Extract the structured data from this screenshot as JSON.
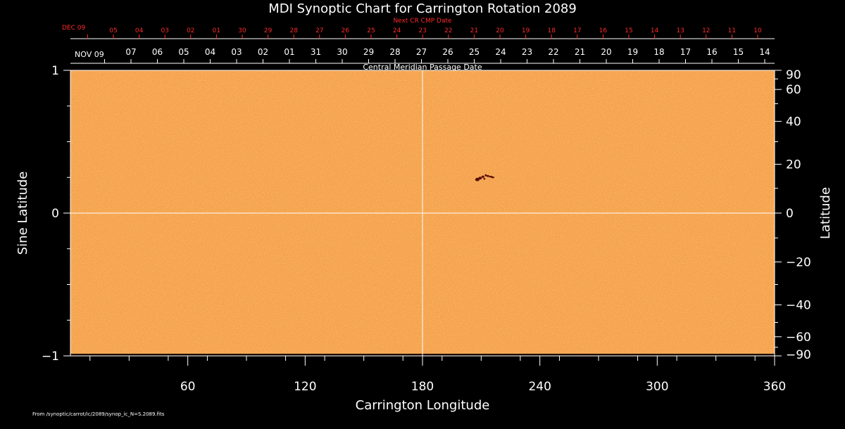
{
  "chart_data": {
    "type": "heatmap",
    "title": "MDI Synoptic Chart for Carrington Rotation 2089",
    "xlabel": "Carrington Longitude",
    "ylabel_left": "Sine Latitude",
    "ylabel_right": "Latitude",
    "xlim": [
      0,
      360
    ],
    "ylim": [
      -1,
      1
    ],
    "x_ticks": [
      60,
      120,
      180,
      240,
      300,
      360
    ],
    "y_left_ticks": [
      {
        "value": 1,
        "label": "1"
      },
      {
        "value": 0,
        "label": "0"
      },
      {
        "value": -1,
        "label": "−1"
      }
    ],
    "y_right_ticks": [
      {
        "deg": 90,
        "label": "90"
      },
      {
        "deg": 60,
        "label": "60"
      },
      {
        "deg": 40,
        "label": "40"
      },
      {
        "deg": 20,
        "label": "20"
      },
      {
        "deg": 0,
        "label": "0"
      },
      {
        "deg": -20,
        "label": "−20"
      },
      {
        "deg": -40,
        "label": "−40"
      },
      {
        "deg": -60,
        "label": "−60"
      },
      {
        "deg": -90,
        "label": "−90"
      }
    ],
    "top_axis": {
      "label": "Central Meridian Passage Date",
      "start_label": "NOV 09",
      "dates": [
        "07",
        "06",
        "05",
        "04",
        "03",
        "02",
        "01",
        "31",
        "30",
        "29",
        "28",
        "27",
        "26",
        "25",
        "24",
        "23",
        "22",
        "21",
        "20",
        "19",
        "18",
        "17",
        "16",
        "15",
        "14"
      ]
    },
    "next_axis": {
      "label": "Next CR CMP Date",
      "start_label": "DEC 09",
      "dates": [
        "05",
        "04",
        "03",
        "02",
        "01",
        "30",
        "29",
        "28",
        "27",
        "26",
        "25",
        "24",
        "23",
        "22",
        "21",
        "20",
        "19",
        "18",
        "17",
        "16",
        "15",
        "14",
        "13",
        "12",
        "11",
        "10"
      ]
    },
    "grid_lines": {
      "longitude": 180,
      "sine_latitude": 0
    },
    "features": [
      {
        "name": "active region",
        "longitude": 212,
        "sine_latitude": 0.25
      }
    ],
    "colors": {
      "background": "#000000",
      "map_fill": "#f5a04a",
      "texture": "#e48a33",
      "feature": "#5a0e08",
      "next_axis": "#ff2a2a",
      "axes": "#ffffff"
    }
  },
  "footer": {
    "file_note": "From /synoptic/carrot/ic/2089/synop_ic_N=S.2089.fits"
  }
}
